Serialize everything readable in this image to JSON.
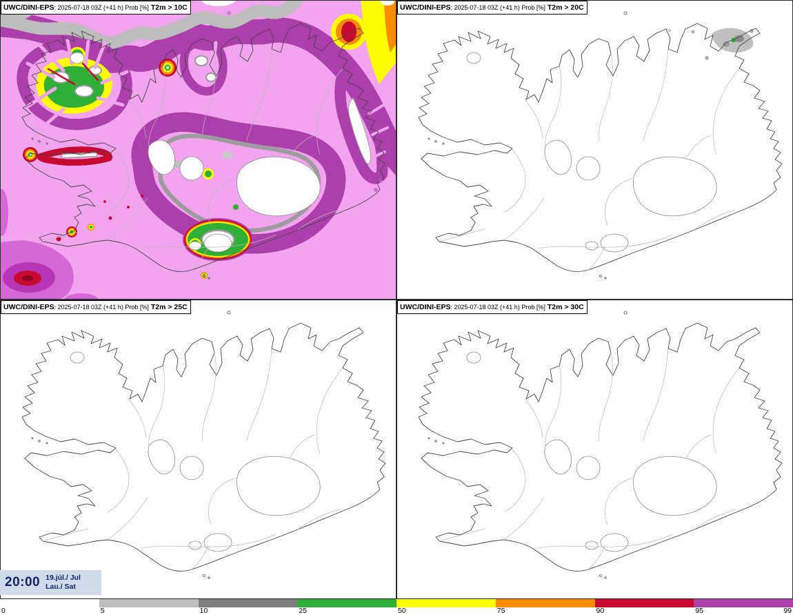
{
  "panels": [
    {
      "model": "UWC/DINI-EPS",
      "meta": ": 2025-07-18 03Z (+41 h) Prob [%]",
      "threshold": "T2m > 10C"
    },
    {
      "model": "UWC/DINI-EPS",
      "meta": ": 2025-07-18 03Z (+41 h) Prob [%]",
      "threshold": "T2m > 20C"
    },
    {
      "model": "UWC/DINI-EPS",
      "meta": ": 2025-07-18 03Z (+41 h) Prob [%]",
      "threshold": "T2m > 25C"
    },
    {
      "model": "UWC/DINI-EPS",
      "meta": ": 2025-07-18 03Z (+41 h) Prob [%]",
      "threshold": "T2m > 30C"
    }
  ],
  "clock": {
    "time": "20:00",
    "date": "19.júl./ Jul",
    "day": "Lau./ Sat"
  },
  "legend": {
    "ticks": [
      "0",
      "5",
      "10",
      "25",
      "50",
      "75",
      "90",
      "95",
      "99"
    ],
    "segments": [
      {
        "label": "0-5",
        "color": "#ffffff"
      },
      {
        "label": "5-10",
        "color": "#bdbdbd"
      },
      {
        "label": "10-25",
        "color": "#7d7d7d"
      },
      {
        "label": "25-50",
        "color": "#2fae38"
      },
      {
        "label": "50-75",
        "color": "#fdfd02"
      },
      {
        "label": "75-90",
        "color": "#ff8c00"
      },
      {
        "label": "90-95",
        "color": "#c6092f"
      },
      {
        "label": "95-99",
        "color": "#ad3fad"
      }
    ],
    "above_99_color": "#f2a4ef"
  }
}
